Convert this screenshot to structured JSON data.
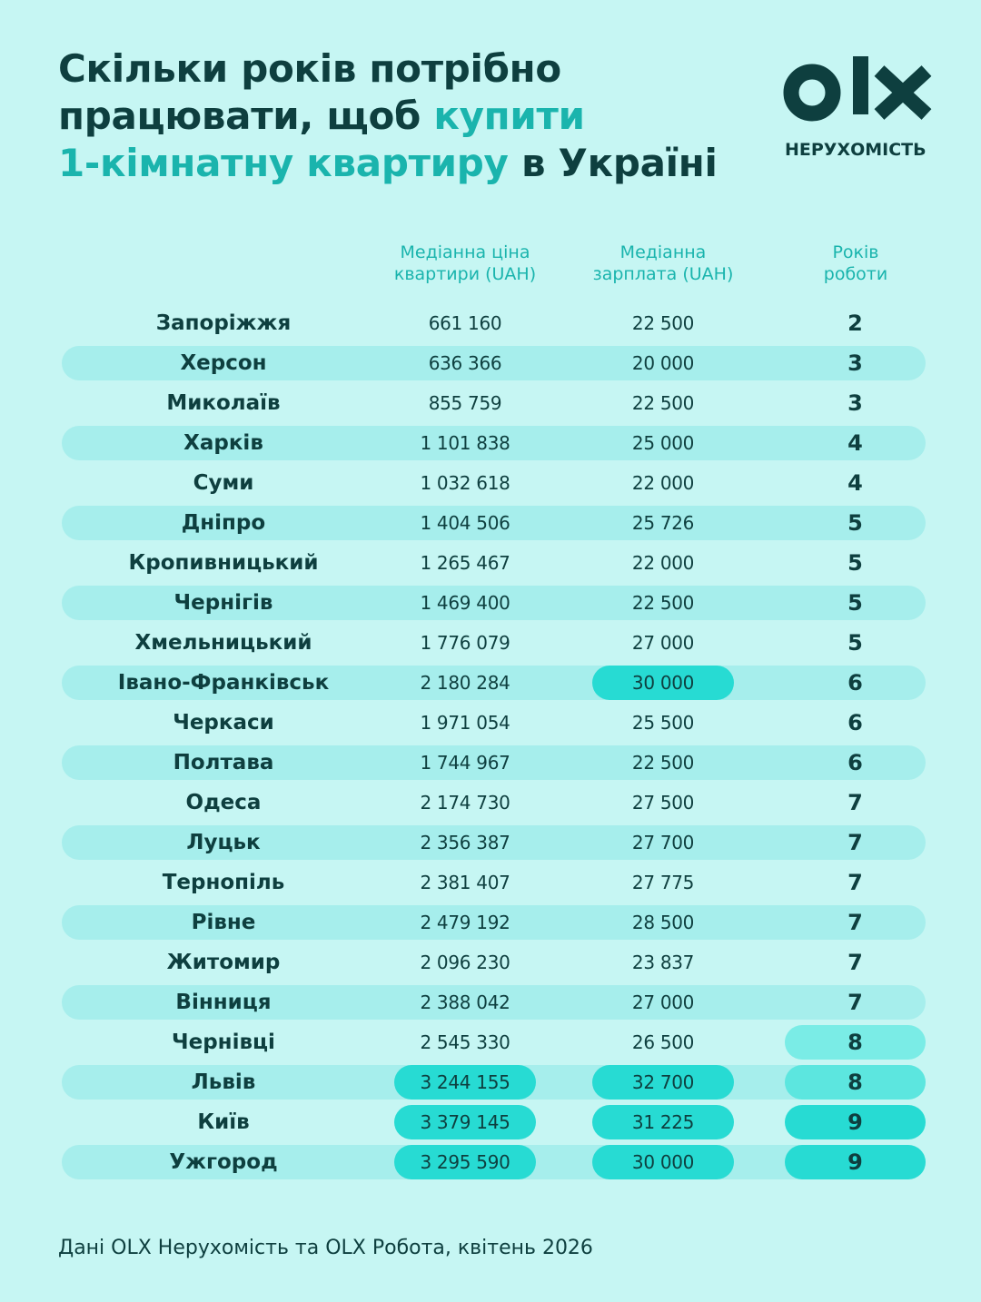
{
  "title": {
    "line1": "Скільки років потрібно",
    "line2_a": "працювати, щоб ",
    "line2_b": "купити",
    "line3_a": "1-кімнатну квартиру",
    "line3_b": " в Україні"
  },
  "logo": {
    "mark": "OLX",
    "sub": "НЕРУХОМІСТЬ"
  },
  "colors": {
    "background": "#c6f6f3",
    "dark": "#0e3f3f",
    "accent": "#1ab4ad",
    "highlight": "#27dbd3"
  },
  "chart_data": {
    "type": "table",
    "columns": [
      [
        "Медіанна ціна",
        "квартири (UAH)"
      ],
      [
        "Медіанна",
        "зарплата (UAH)"
      ],
      [
        "Років",
        "роботи"
      ]
    ],
    "rows": [
      {
        "city": "Запоріжжя",
        "price": "661 160",
        "salary": "22 500",
        "years": "2"
      },
      {
        "city": "Херсон",
        "price": "636 366",
        "salary": "20 000",
        "years": "3"
      },
      {
        "city": "Миколаїв",
        "price": "855 759",
        "salary": "22 500",
        "years": "3"
      },
      {
        "city": "Харків",
        "price": "1 101 838",
        "salary": "25 000",
        "years": "4"
      },
      {
        "city": "Суми",
        "price": "1 032 618",
        "salary": "22 000",
        "years": "4"
      },
      {
        "city": "Дніпро",
        "price": "1 404 506",
        "salary": "25 726",
        "years": "5"
      },
      {
        "city": "Кропивницький",
        "price": "1 265 467",
        "salary": "22 000",
        "years": "5"
      },
      {
        "city": "Чернігів",
        "price": "1 469 400",
        "salary": "22 500",
        "years": "5"
      },
      {
        "city": "Хмельницький",
        "price": "1 776 079",
        "salary": "27 000",
        "years": "5"
      },
      {
        "city": "Івано-Франківськ",
        "price": "2 180 284",
        "salary": "30 000",
        "years": "6"
      },
      {
        "city": "Черкаси",
        "price": "1 971 054",
        "salary": "25 500",
        "years": "6"
      },
      {
        "city": "Полтава",
        "price": "1 744 967",
        "salary": "22 500",
        "years": "6"
      },
      {
        "city": "Одеса",
        "price": "2 174 730",
        "salary": "27 500",
        "years": "7"
      },
      {
        "city": "Луцьк",
        "price": "2 356 387",
        "salary": "27 700",
        "years": "7"
      },
      {
        "city": "Тернопіль",
        "price": "2 381 407",
        "salary": "27 775",
        "years": "7"
      },
      {
        "city": "Рівне",
        "price": "2 479 192",
        "salary": "28 500",
        "years": "7"
      },
      {
        "city": "Житомир",
        "price": "2 096 230",
        "salary": "23 837",
        "years": "7"
      },
      {
        "city": "Вінниця",
        "price": "2 388 042",
        "salary": "27 000",
        "years": "7"
      },
      {
        "city": "Чернівці",
        "price": "2 545 330",
        "salary": "26 500",
        "years": "8"
      },
      {
        "city": "Львів",
        "price": "3 244 155",
        "salary": "32 700",
        "years": "8"
      },
      {
        "city": "Київ",
        "price": "3 379 145",
        "salary": "31 225",
        "years": "9"
      },
      {
        "city": "Ужгород",
        "price": "3 295 590",
        "salary": "30 000",
        "years": "9"
      }
    ],
    "highlights": {
      "price": [
        "Львів",
        "Київ",
        "Ужгород"
      ],
      "salary": [
        "Івано-Франківськ",
        "Львів",
        "Київ",
        "Ужгород"
      ],
      "years": {
        "Чернівці": "light",
        "Львів": "mid",
        "Київ": "strong",
        "Ужгород": "strong"
      }
    }
  },
  "footer": "Дані OLX Нерухомість та OLX Робота, квітень 2026"
}
